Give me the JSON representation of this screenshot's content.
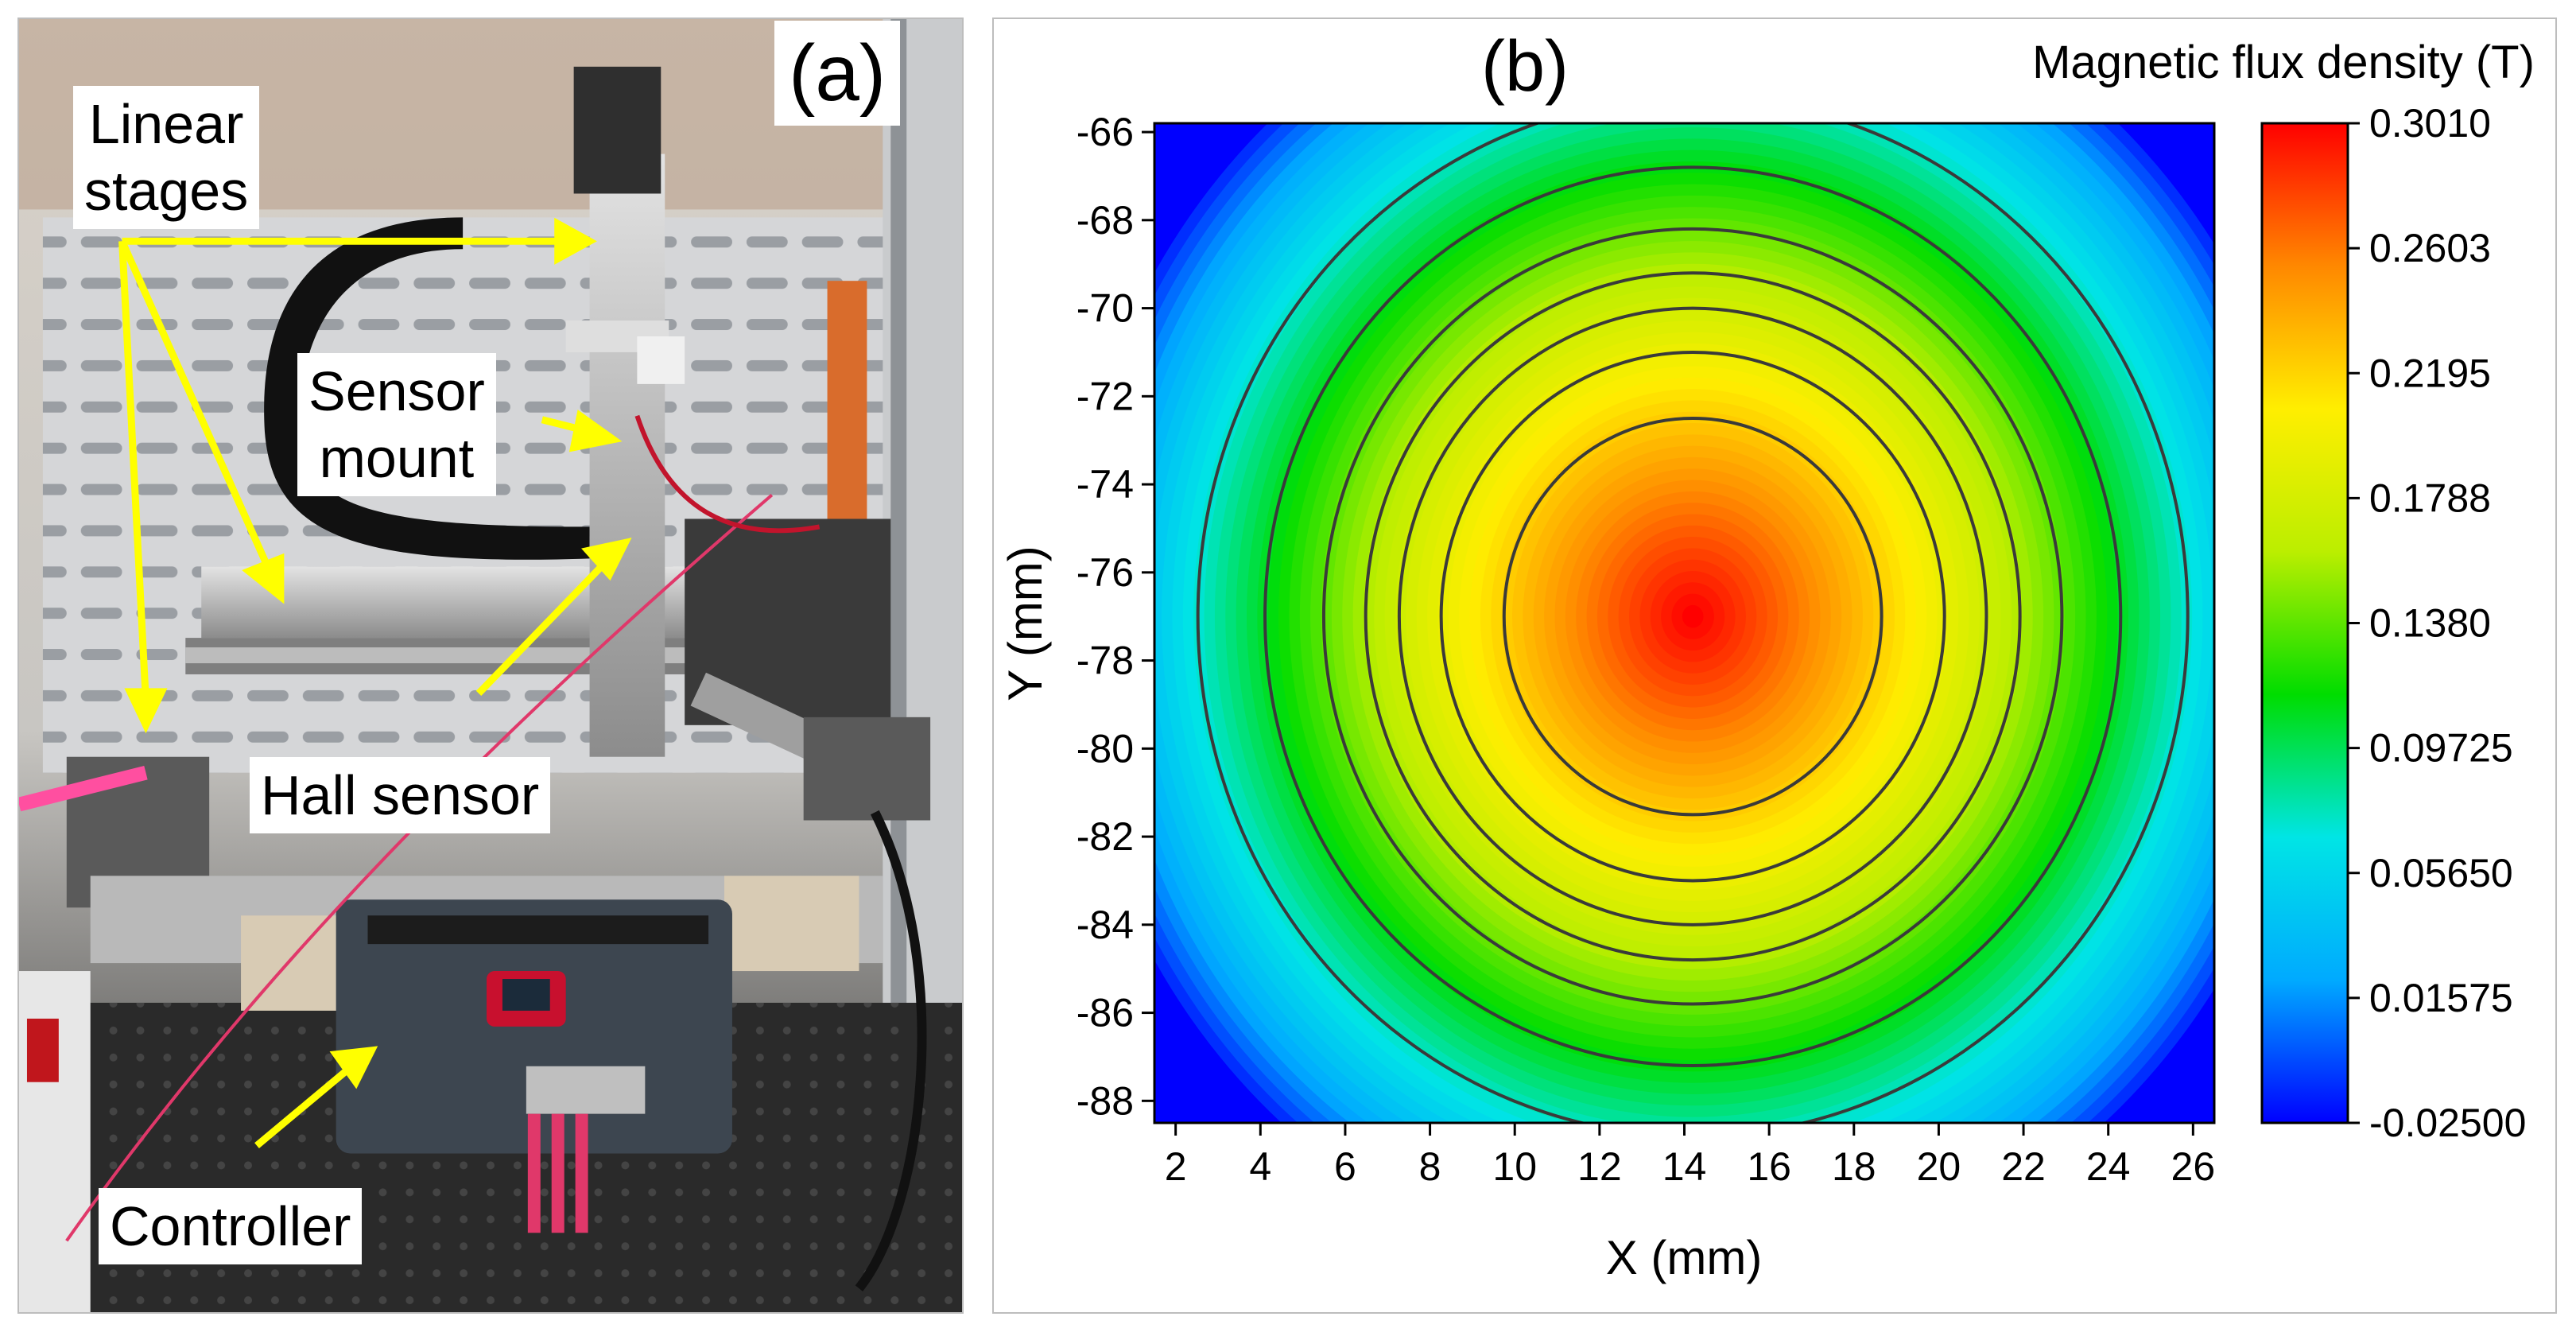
{
  "panel_a": {
    "label": "(a)",
    "annotations": {
      "linear_stages": "Linear\nstages",
      "sensor_mount": "Sensor\nmount",
      "hall_sensor": "Hall sensor",
      "controller": "Controller"
    },
    "arrow_color": "#ffff00"
  },
  "chart_data": {
    "type": "heatmap",
    "panel_label": "(b)",
    "title": "Magnetic flux density (T)",
    "xlabel": "X (mm)",
    "ylabel": "Y (mm)",
    "xlim": [
      1.5,
      26.5
    ],
    "ylim": [
      -88.5,
      -65.8
    ],
    "x_ticks": [
      2,
      4,
      6,
      8,
      10,
      12,
      14,
      16,
      18,
      20,
      22,
      24,
      26
    ],
    "y_ticks": [
      -66,
      -68,
      -70,
      -72,
      -74,
      -76,
      -78,
      -80,
      -82,
      -84,
      -86,
      -88
    ],
    "colorbar_ticks": [
      "0.3010",
      "0.2603",
      "0.2195",
      "0.1788",
      "0.1380",
      "0.09725",
      "0.05650",
      "0.01575",
      "-0.02500"
    ],
    "zlim": [
      -0.025,
      0.301
    ],
    "colormap": [
      "#0000ff",
      "#00aaff",
      "#00e5e5",
      "#00dd00",
      "#bbee00",
      "#ffee00",
      "#ff8800",
      "#ff0000"
    ],
    "field_center": {
      "x": 14.2,
      "y": -77.0
    },
    "peak_value": 0.301,
    "contour_radii_y_mm": [
      4.5,
      6.0,
      7.0,
      7.8,
      8.8,
      10.2,
      11.8
    ]
  }
}
